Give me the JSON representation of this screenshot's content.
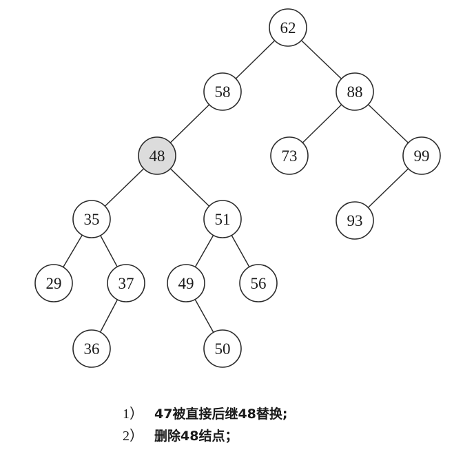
{
  "tree": {
    "nodes": [
      {
        "id": "n62",
        "value": "62",
        "highlighted": false
      },
      {
        "id": "n58",
        "value": "58",
        "highlighted": false
      },
      {
        "id": "n88",
        "value": "88",
        "highlighted": false
      },
      {
        "id": "n48",
        "value": "48",
        "highlighted": true
      },
      {
        "id": "n73",
        "value": "73",
        "highlighted": false
      },
      {
        "id": "n99",
        "value": "99",
        "highlighted": false
      },
      {
        "id": "n35",
        "value": "35",
        "highlighted": false
      },
      {
        "id": "n51",
        "value": "51",
        "highlighted": false
      },
      {
        "id": "n93",
        "value": "93",
        "highlighted": false
      },
      {
        "id": "n29",
        "value": "29",
        "highlighted": false
      },
      {
        "id": "n37",
        "value": "37",
        "highlighted": false
      },
      {
        "id": "n49",
        "value": "49",
        "highlighted": false
      },
      {
        "id": "n56",
        "value": "56",
        "highlighted": false
      },
      {
        "id": "n36",
        "value": "36",
        "highlighted": false
      },
      {
        "id": "n50",
        "value": "50",
        "highlighted": false
      }
    ],
    "edges": [
      [
        "n62",
        "n58"
      ],
      [
        "n62",
        "n88"
      ],
      [
        "n58",
        "n48"
      ],
      [
        "n88",
        "n73"
      ],
      [
        "n88",
        "n99"
      ],
      [
        "n48",
        "n35"
      ],
      [
        "n48",
        "n51"
      ],
      [
        "n99",
        "n93"
      ],
      [
        "n35",
        "n29"
      ],
      [
        "n35",
        "n37"
      ],
      [
        "n51",
        "n49"
      ],
      [
        "n51",
        "n56"
      ],
      [
        "n37",
        "n36"
      ],
      [
        "n49",
        "n50"
      ]
    ]
  },
  "captions": [
    {
      "label": "1）",
      "text": "47被直接后继48替换;"
    },
    {
      "label": "2）",
      "text": "删除48结点；"
    }
  ],
  "colors": {
    "highlight_fill": "#dcdcdc",
    "node_fill": "#ffffff",
    "stroke": "#2b2b2b"
  }
}
